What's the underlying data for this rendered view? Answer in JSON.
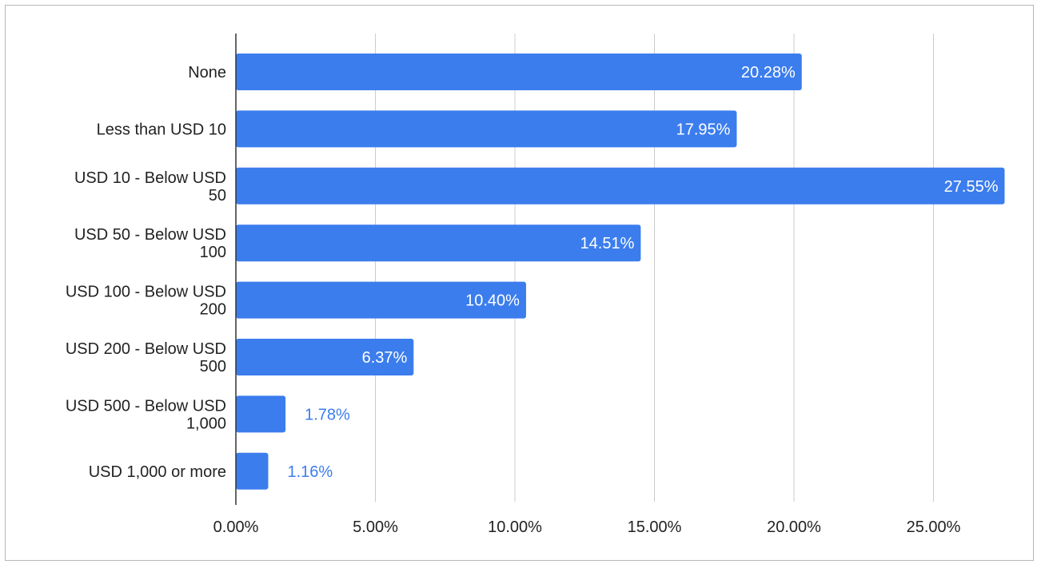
{
  "chart_data": {
    "type": "bar",
    "orientation": "horizontal",
    "categories": [
      [
        "None"
      ],
      [
        "Less than USD 10"
      ],
      [
        "USD 10 - Below USD",
        "50"
      ],
      [
        "USD 50 - Below USD",
        "100"
      ],
      [
        "USD 100 - Below USD",
        "200"
      ],
      [
        "USD 200 - Below USD",
        "500"
      ],
      [
        "USD 500 - Below USD",
        "1,000"
      ],
      [
        "USD 1,000 or more"
      ]
    ],
    "values": [
      20.28,
      17.95,
      27.55,
      14.51,
      10.4,
      6.37,
      1.78,
      1.16
    ],
    "data_labels": [
      "20.28%",
      "17.95%",
      "27.55%",
      "14.51%",
      "10.40%",
      "6.37%",
      "1.78%",
      "1.16%"
    ],
    "xticks": [
      0,
      5,
      10,
      15,
      20,
      25
    ],
    "xtick_labels": [
      "0.00%",
      "5.00%",
      "10.00%",
      "15.00%",
      "20.00%",
      "25.00%"
    ],
    "xlim": [
      0,
      28
    ],
    "title": "",
    "xlabel": "",
    "ylabel": "",
    "grid": "vertical",
    "legend": "none",
    "colors": {
      "bar": "#3b7ded",
      "label_inside": "#ffffff",
      "label_outside": "#3b7ded",
      "grid": "#cccccc",
      "axis": "#333333"
    }
  }
}
